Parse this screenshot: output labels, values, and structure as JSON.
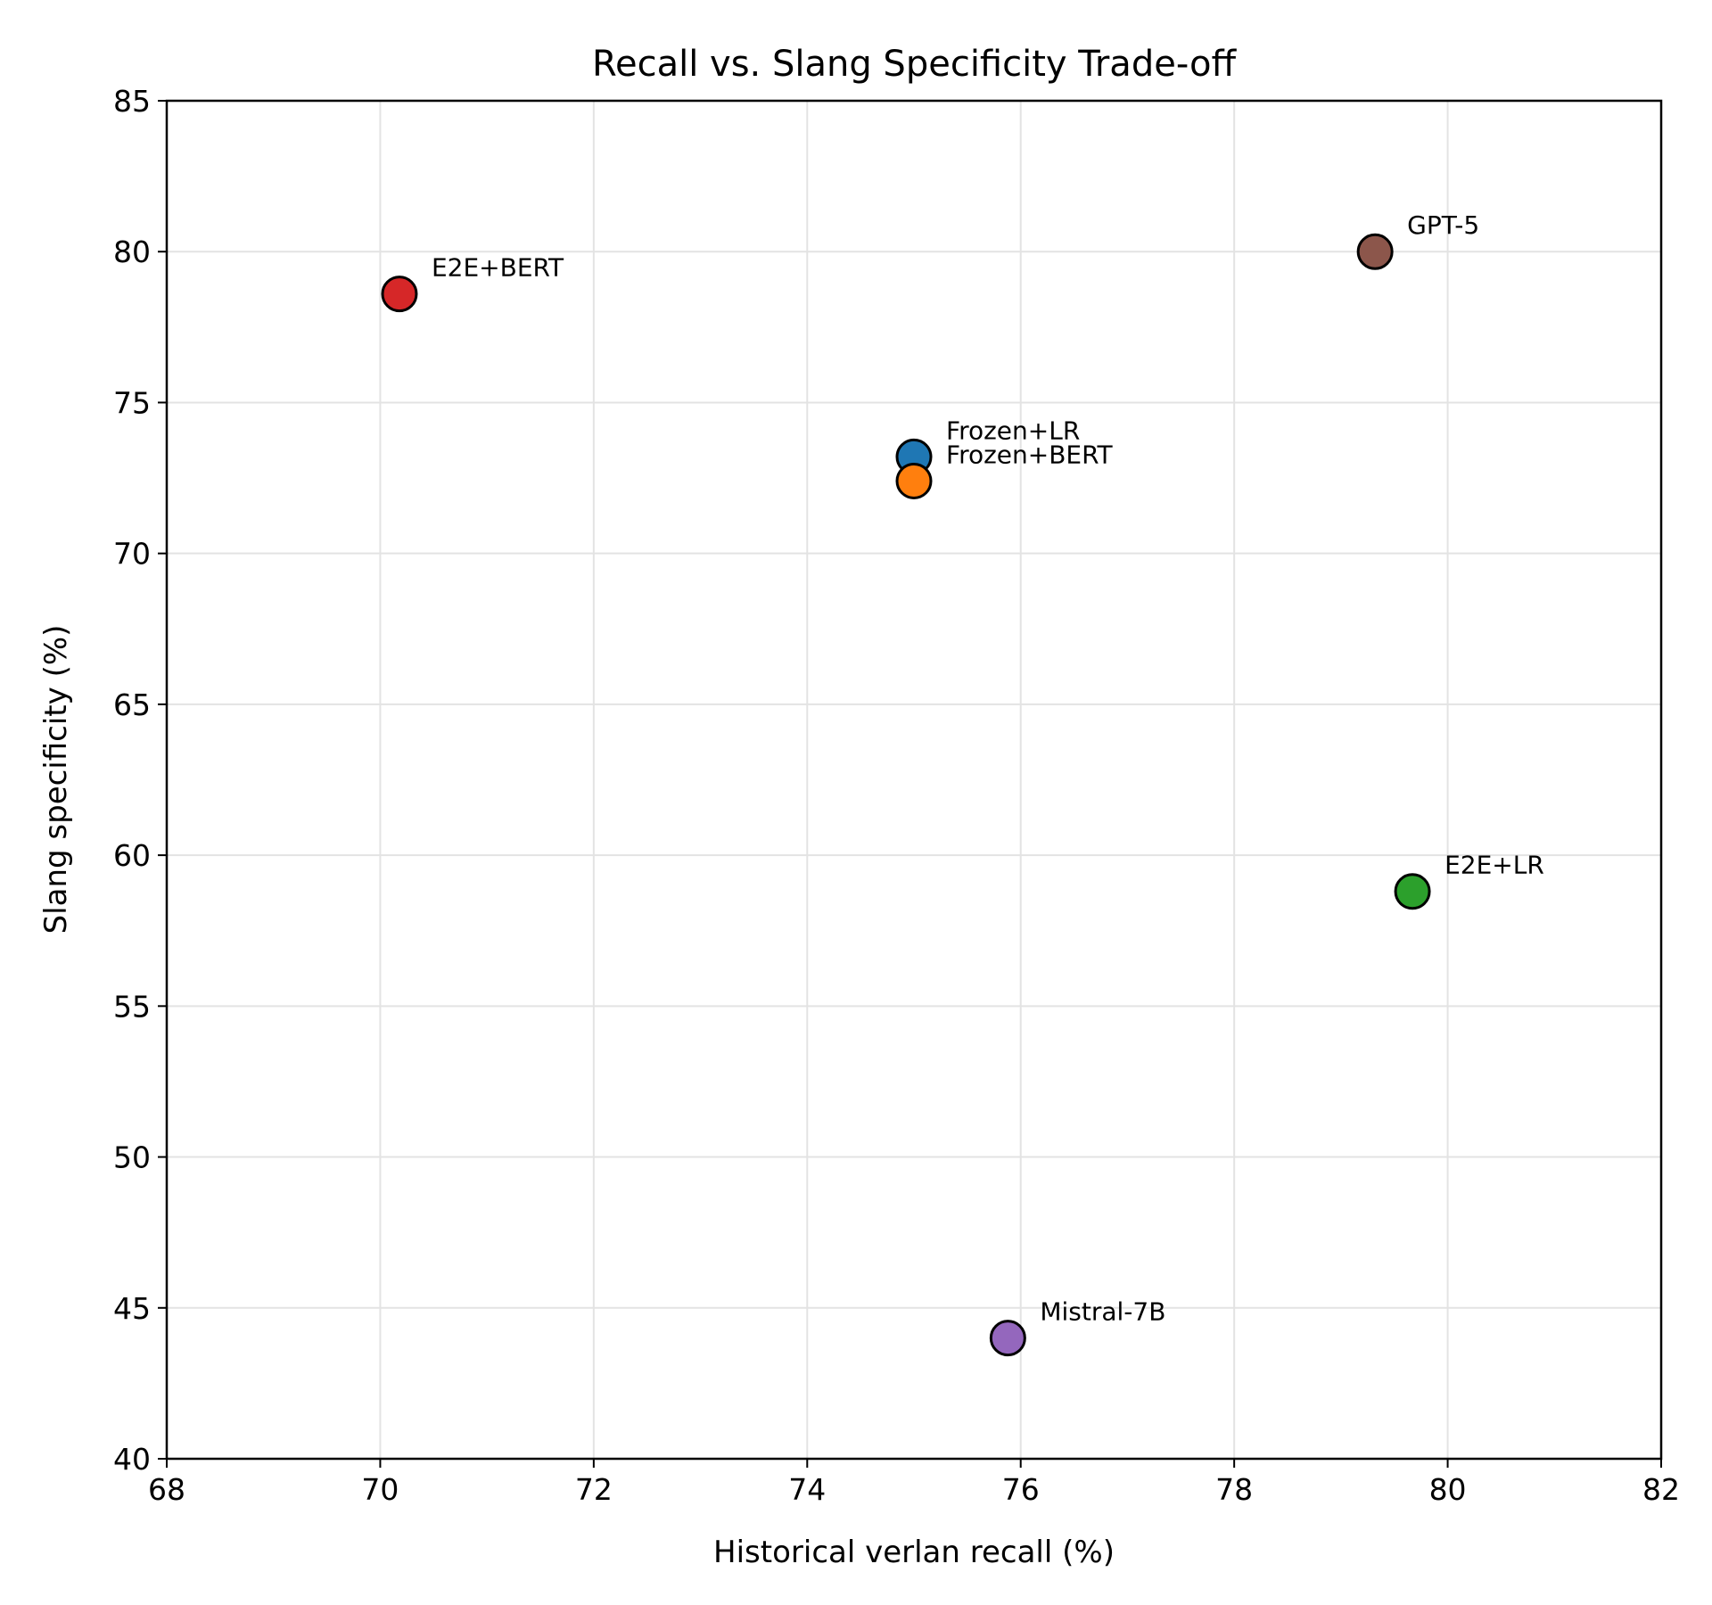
{
  "chart_data": {
    "type": "scatter",
    "title": "Recall vs. Slang Specificity Trade-off",
    "xlabel": "Historical verlan recall (%)",
    "ylabel": "Slang specificity (%)",
    "xlim": [
      68,
      82
    ],
    "ylim": [
      40,
      85
    ],
    "xticks": [
      68,
      70,
      72,
      74,
      76,
      78,
      80,
      82
    ],
    "yticks": [
      40,
      45,
      50,
      55,
      60,
      65,
      70,
      75,
      80,
      85
    ],
    "grid": true,
    "points": [
      {
        "label": "E2E+BERT",
        "x": 70.18,
        "y": 78.6,
        "color": "#d62728"
      },
      {
        "label": "Frozen+LR",
        "x": 75.0,
        "y": 73.2,
        "color": "#1f77b4"
      },
      {
        "label": "Frozen+BERT",
        "x": 75.0,
        "y": 72.4,
        "color": "#ff7f0e"
      },
      {
        "label": "GPT-5",
        "x": 79.32,
        "y": 80.0,
        "color": "#8c564b"
      },
      {
        "label": "E2E+LR",
        "x": 79.67,
        "y": 58.8,
        "color": "#2ca02c"
      },
      {
        "label": "Mistral-7B",
        "x": 75.88,
        "y": 44.0,
        "color": "#9467bd"
      }
    ]
  }
}
